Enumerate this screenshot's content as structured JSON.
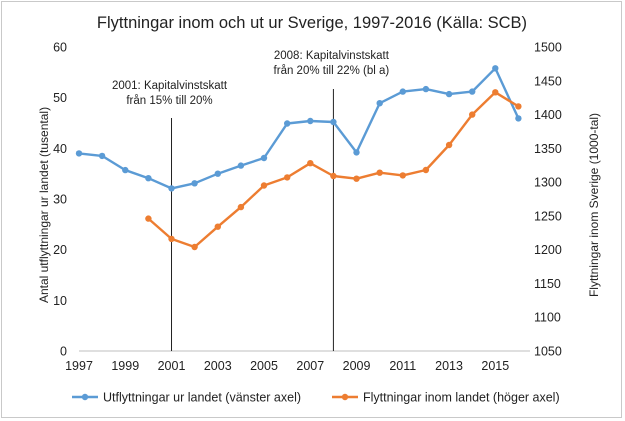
{
  "chart_data": {
    "type": "line",
    "title": "Flyttningar inom och ut ur Sverige, 1997-2016 (Källa: SCB)",
    "x": [
      1997,
      1998,
      1999,
      2000,
      2001,
      2002,
      2003,
      2004,
      2005,
      2006,
      2007,
      2008,
      2009,
      2010,
      2011,
      2012,
      2013,
      2014,
      2015,
      2016
    ],
    "x_tick_labels": [
      "1997",
      "1999",
      "2001",
      "2003",
      "2005",
      "2007",
      "2009",
      "2011",
      "2013",
      "2015"
    ],
    "xlim": [
      1997,
      2016.5
    ],
    "ylabel_left": "Antal  utflyttningar ur landet (tusental)",
    "ylabel_right": "Flyttningar inom Sverige (1000-tal)",
    "ylim_left": [
      0,
      60
    ],
    "yticks_left": [
      "0",
      "10",
      "20",
      "30",
      "40",
      "50",
      "60"
    ],
    "ylim_right": [
      1050,
      1500
    ],
    "yticks_right": [
      "1050",
      "1100",
      "1150",
      "1200",
      "1250",
      "1300",
      "1350",
      "1400",
      "1450",
      "1500"
    ],
    "series": [
      {
        "name": "Utflyttningar ur landet (vänster axel)",
        "axis": "left",
        "color": "#5b9bd5",
        "values": [
          39.0,
          38.5,
          35.7,
          34.1,
          32.1,
          33.1,
          35.0,
          36.6,
          38.1,
          44.9,
          45.4,
          45.2,
          39.2,
          48.9,
          51.2,
          51.7,
          50.7,
          51.2,
          55.8,
          45.9
        ]
      },
      {
        "name": "Flyttningar inom landet (höger axel)",
        "axis": "right",
        "color": "#ed7d31",
        "values": [
          null,
          null,
          null,
          1246,
          1216,
          1204,
          1234,
          1263,
          1295,
          1307,
          1328,
          1309,
          1305,
          1314,
          1310,
          1318,
          1355,
          1400,
          1433,
          1412
        ]
      }
    ],
    "annotations": [
      {
        "x": 2001,
        "lines": [
          "2001: Kapitalvinstskatt",
          "från 15% till 20%"
        ]
      },
      {
        "x": 2008,
        "lines": [
          "2008: Kapitalvinstskatt",
          "från 20% till 22% (bl a)"
        ]
      }
    ],
    "legend_position": "bottom"
  }
}
